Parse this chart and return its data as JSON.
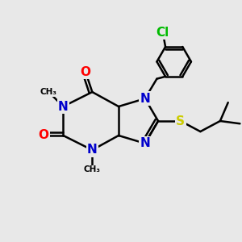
{
  "bg_color": "#e8e8e8",
  "atom_colors": {
    "C": "#000000",
    "N": "#0000cc",
    "O": "#ff0000",
    "S": "#cccc00",
    "Cl": "#00bb00"
  },
  "bond_color": "#000000",
  "bond_width": 1.8,
  "font_size_atom": 11,
  "figsize": [
    3.0,
    3.0
  ],
  "dpi": 100
}
